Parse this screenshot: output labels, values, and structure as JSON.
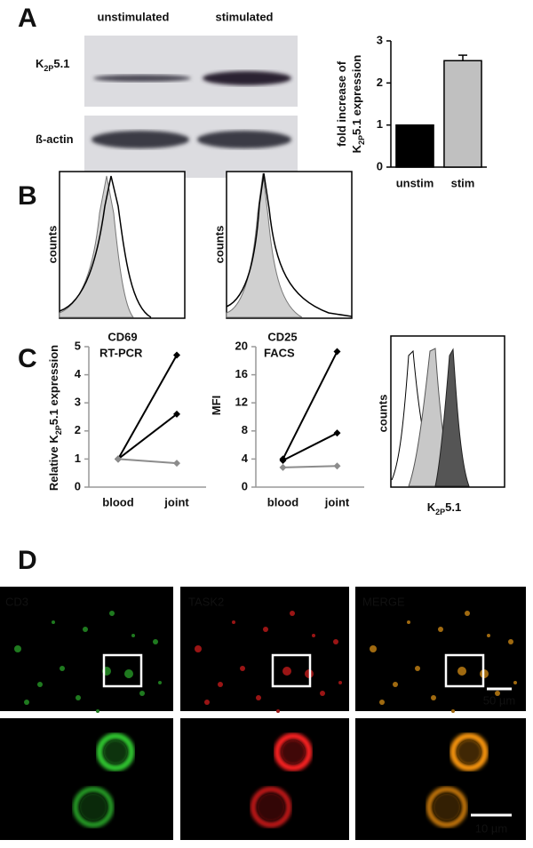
{
  "figure": {
    "panel_labels": [
      "A",
      "B",
      "C",
      "D"
    ],
    "blot": {
      "columns": [
        "unstimulated",
        "stimulated"
      ],
      "rows": [
        [
          "K",
          "2P",
          "5.1"
        ],
        [
          "ß-actin"
        ]
      ]
    },
    "flow": {
      "ylabel": "counts",
      "xlabels": [
        "CD69",
        "CD25"
      ]
    },
    "c_hist": {
      "ylabel": "counts",
      "xlabel": [
        "K",
        "2P",
        "5.1"
      ]
    },
    "micro": {
      "channels": [
        "CD3",
        "TASK2",
        "MERGE"
      ],
      "channel_colors": [
        "#2eb82e",
        "#e02020",
        "#ffff99"
      ],
      "scalebars": [
        "50 µm",
        "10 µm"
      ]
    }
  },
  "chart_data": [
    {
      "type": "bar",
      "categories": [
        "unstim",
        "stim"
      ],
      "values": [
        1,
        2.53
      ],
      "errors": [
        0,
        0.13
      ],
      "colors": [
        "#000000",
        "#c0c0c0"
      ],
      "ylim": [
        0,
        3
      ],
      "yticks": [
        0,
        1,
        2,
        3
      ],
      "ylabel": [
        [
          "fold increase of"
        ],
        [
          "K",
          "2P",
          "5.1 expression"
        ]
      ]
    },
    {
      "type": "line",
      "annotation": "RT-PCR",
      "categories": [
        "blood",
        "joint"
      ],
      "series": [
        {
          "color": "#000000",
          "values": [
            1,
            4.7
          ]
        },
        {
          "color": "#000000",
          "values": [
            1,
            2.6
          ]
        },
        {
          "color": "#8c8c8c",
          "values": [
            1,
            0.85
          ]
        }
      ],
      "ylim": [
        0,
        5
      ],
      "yticks": [
        0,
        1,
        2,
        3,
        4,
        5
      ],
      "ylabel": [
        [
          "Relative K",
          "2P",
          "5.1 expression"
        ]
      ]
    },
    {
      "type": "line",
      "annotation": "FACS",
      "categories": [
        "blood",
        "joint"
      ],
      "series": [
        {
          "color": "#000000",
          "values": [
            4,
            19.3
          ]
        },
        {
          "color": "#000000",
          "values": [
            3.8,
            7.7
          ]
        },
        {
          "color": "#8c8c8c",
          "values": [
            2.8,
            3.0
          ]
        }
      ],
      "ylim": [
        0,
        20
      ],
      "yticks": [
        0,
        4,
        8,
        12,
        16,
        20
      ],
      "ylabel": [
        [
          "MFI"
        ]
      ]
    }
  ]
}
